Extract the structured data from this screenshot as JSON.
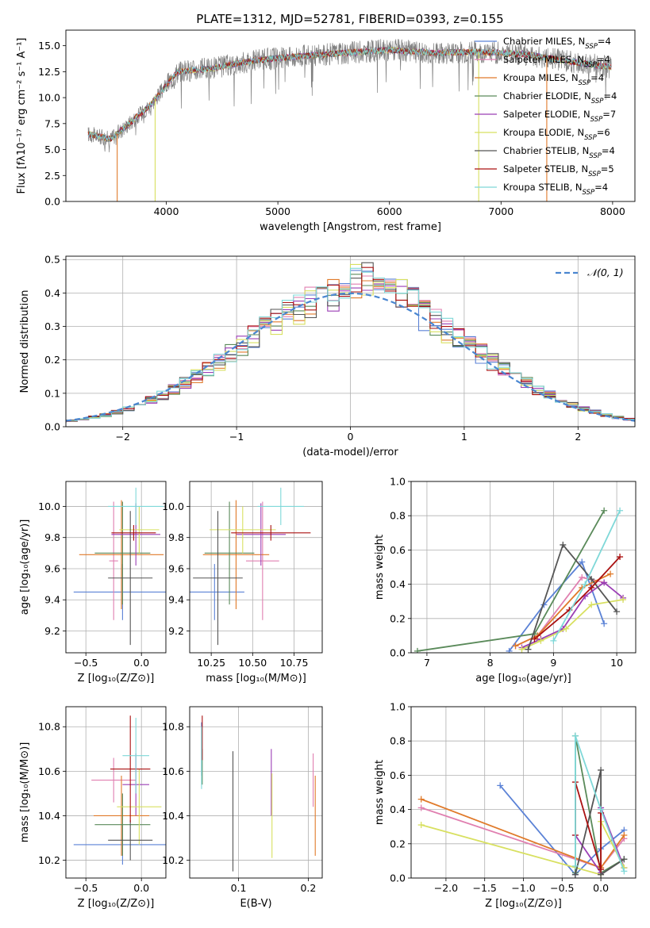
{
  "title": "PLATE=1312, MJD=52781, FIBERID=0393, z=0.155",
  "models": [
    {
      "name": "Chabrier MILES, N",
      "sub": "SSP",
      "tail": "=4",
      "color": "#5b82d6"
    },
    {
      "name": "Salpeter MILES, N",
      "sub": "SSP",
      "tail": "=4",
      "color": "#e07fb0"
    },
    {
      "name": "Kroupa MILES, N",
      "sub": "SSP",
      "tail": "=4",
      "color": "#e07a2a"
    },
    {
      "name": "Chabrier ELODIE, N",
      "sub": "SSP",
      "tail": "=4",
      "color": "#5a8a5a"
    },
    {
      "name": "Salpeter ELODIE, N",
      "sub": "SSP",
      "tail": "=7",
      "color": "#9b3fb5"
    },
    {
      "name": "Kroupa ELODIE, N",
      "sub": "SSP",
      "tail": "=6",
      "color": "#d8e060"
    },
    {
      "name": "Chabrier STELIB, N",
      "sub": "SSP",
      "tail": "=4",
      "color": "#555555"
    },
    {
      "name": "Salpeter STELIB, N",
      "sub": "SSP",
      "tail": "=5",
      "color": "#aa1111"
    },
    {
      "name": "Kroupa STELIB, N",
      "sub": "SSP",
      "tail": "=4",
      "color": "#7fd8d8"
    }
  ],
  "chart_data": [
    {
      "id": "spectrum",
      "type": "line",
      "xlabel": "wavelength [Angstrom, rest frame]",
      "ylabel": "Flux [fλ10⁻¹⁷ erg cm⁻² s⁻¹ A⁻¹]",
      "xlim": [
        3100,
        8200
      ],
      "ylim": [
        0,
        16.5
      ],
      "xticks": [
        4000,
        5000,
        6000,
        7000,
        8000
      ],
      "yticks": [
        0.0,
        2.5,
        5.0,
        7.5,
        10.0,
        12.5,
        15.0
      ],
      "continuum_x": [
        3300,
        3500,
        3700,
        3850,
        3950,
        4100,
        4400,
        4800,
        5200,
        5600,
        6000,
        6400,
        6800,
        7200,
        7600,
        8000
      ],
      "continuum_y": [
        6.5,
        6.0,
        7.8,
        9.2,
        10.5,
        12.5,
        12.8,
        13.6,
        14.0,
        14.3,
        14.6,
        14.3,
        14.4,
        14.2,
        13.5,
        12.9
      ]
    },
    {
      "id": "residuals",
      "type": "histogram",
      "xlabel": "(data-model)/error",
      "ylabel": "Normed distribution",
      "xlim": [
        -2.5,
        2.5
      ],
      "ylim": [
        0,
        0.51
      ],
      "xticks": [
        -2,
        -1,
        0,
        1,
        2
      ],
      "yticks": [
        0.0,
        0.1,
        0.2,
        0.3,
        0.4,
        0.5
      ],
      "legend": "𝒩(0, 1)",
      "bin_width": 0.1
    },
    {
      "id": "age_vs_Z",
      "type": "errorbar",
      "xlabel": "Z [log₁₀(Z/Z⊙)]",
      "ylabel": "age  [log₁₀(age/yr)]",
      "xlim": [
        -0.68,
        0.22
      ],
      "ylim": [
        9.06,
        10.16
      ],
      "xticks": [
        -0.5,
        0.0
      ],
      "yticks": [
        9.2,
        9.4,
        9.6,
        9.8,
        10.0
      ],
      "points": [
        {
          "x": -0.17,
          "xerr": 0.44,
          "y": 9.45,
          "yerr": 0.18
        },
        {
          "x": -0.25,
          "xerr": 0.04,
          "y": 9.65,
          "yerr": 0.38
        },
        {
          "x": -0.18,
          "xerr": 0.38,
          "y": 9.69,
          "yerr": 0.35
        },
        {
          "x": -0.17,
          "xerr": 0.25,
          "y": 9.7,
          "yerr": 0.33
        },
        {
          "x": -0.05,
          "xerr": 0.22,
          "y": 9.82,
          "yerr": 0.2
        },
        {
          "x": -0.02,
          "xerr": 0.18,
          "y": 9.85,
          "yerr": 0.15
        },
        {
          "x": -0.1,
          "xerr": 0.2,
          "y": 9.54,
          "yerr": 0.43
        },
        {
          "x": -0.07,
          "xerr": 0.2,
          "y": 9.83,
          "yerr": 0.05
        },
        {
          "x": -0.05,
          "xerr": 0.25,
          "y": 10.0,
          "yerr": 0.12
        }
      ]
    },
    {
      "id": "age_vs_mass",
      "type": "errorbar",
      "xlabel": "mass [log₁₀(M/M⊙)]",
      "ylabel": "",
      "xlim": [
        10.12,
        10.92
      ],
      "ylim": [
        9.06,
        10.16
      ],
      "xticks": [
        10.25,
        10.5,
        10.75
      ],
      "yticks": [
        9.2,
        9.4,
        9.6,
        9.8,
        10.0
      ],
      "points": [
        {
          "x": 10.27,
          "xerr": 0.18,
          "y": 9.45,
          "yerr": 0.18
        },
        {
          "x": 10.56,
          "xerr": 0.1,
          "y": 9.65,
          "yerr": 0.38
        },
        {
          "x": 10.4,
          "xerr": 0.2,
          "y": 9.69,
          "yerr": 0.35
        },
        {
          "x": 10.36,
          "xerr": 0.15,
          "y": 9.7,
          "yerr": 0.33
        },
        {
          "x": 10.55,
          "xerr": 0.15,
          "y": 9.82,
          "yerr": 0.2
        },
        {
          "x": 10.44,
          "xerr": 0.2,
          "y": 9.85,
          "yerr": 0.15
        },
        {
          "x": 10.29,
          "xerr": 0.15,
          "y": 9.54,
          "yerr": 0.43
        },
        {
          "x": 10.61,
          "xerr": 0.24,
          "y": 9.83,
          "yerr": 0.05
        },
        {
          "x": 10.67,
          "xerr": 0.14,
          "y": 10.0,
          "yerr": 0.12
        }
      ]
    },
    {
      "id": "mass_weight_vs_age",
      "type": "line",
      "xlabel": "age  [log₁₀(age/yr)]",
      "ylabel": "mass weight",
      "xlim": [
        6.75,
        10.3
      ],
      "ylim": [
        0,
        1.0
      ],
      "xticks": [
        7,
        8,
        9,
        10
      ],
      "yticks": [
        0.0,
        0.2,
        0.4,
        0.6,
        0.8,
        1.0
      ],
      "series": [
        {
          "x": [
            8.3,
            8.85,
            9.45,
            9.8
          ],
          "y": [
            0.01,
            0.28,
            0.53,
            0.17
          ]
        },
        {
          "x": [
            8.4,
            8.75,
            9.45,
            9.8
          ],
          "y": [
            0.04,
            0.1,
            0.44,
            0.41
          ]
        },
        {
          "x": [
            8.4,
            8.75,
            9.45,
            9.9
          ],
          "y": [
            0.04,
            0.1,
            0.38,
            0.46
          ]
        },
        {
          "x": [
            6.85,
            8.7,
            9.8
          ],
          "y": [
            0.01,
            0.11,
            0.83
          ]
        },
        {
          "x": [
            8.5,
            8.8,
            9.15,
            9.5,
            9.8,
            10.1
          ],
          "y": [
            0.03,
            0.08,
            0.14,
            0.33,
            0.41,
            0.32
          ]
        },
        {
          "x": [
            8.5,
            8.8,
            9.2,
            9.6,
            10.1
          ],
          "y": [
            0.02,
            0.07,
            0.14,
            0.28,
            0.31
          ]
        },
        {
          "x": [
            8.6,
            9.15,
            9.6,
            10.0
          ],
          "y": [
            0.02,
            0.63,
            0.43,
            0.24
          ]
        },
        {
          "x": [
            8.7,
            9.25,
            9.6,
            10.05
          ],
          "y": [
            0.08,
            0.25,
            0.38,
            0.56
          ]
        },
        {
          "x": [
            9.0,
            9.5,
            10.05
          ],
          "y": [
            0.07,
            0.4,
            0.83
          ]
        }
      ]
    },
    {
      "id": "mass_vs_Z",
      "type": "errorbar",
      "xlabel": "Z [log₁₀(Z/Z⊙)]",
      "ylabel": "mass [log₁₀(M/M⊙)]",
      "xlim": [
        -0.68,
        0.22
      ],
      "ylim": [
        10.12,
        10.89
      ],
      "xticks": [
        -0.5,
        0.0
      ],
      "yticks": [
        10.2,
        10.4,
        10.6,
        10.8
      ],
      "points": [
        {
          "x": -0.17,
          "xerr": 0.44,
          "y": 10.27,
          "yerr": 0.09
        },
        {
          "x": -0.25,
          "xerr": 0.2,
          "y": 10.56,
          "yerr": 0.1
        },
        {
          "x": -0.18,
          "xerr": 0.25,
          "y": 10.4,
          "yerr": 0.18
        },
        {
          "x": -0.17,
          "xerr": 0.25,
          "y": 10.36,
          "yerr": 0.14
        },
        {
          "x": -0.05,
          "xerr": 0.12,
          "y": 10.54,
          "yerr": 0.14
        },
        {
          "x": -0.02,
          "xerr": 0.2,
          "y": 10.44,
          "yerr": 0.17
        },
        {
          "x": -0.1,
          "xerr": 0.2,
          "y": 10.29,
          "yerr": 0.09
        },
        {
          "x": -0.1,
          "xerr": 0.18,
          "y": 10.61,
          "yerr": 0.24
        },
        {
          "x": -0.05,
          "xerr": 0.12,
          "y": 10.67,
          "yerr": 0.17
        }
      ]
    },
    {
      "id": "mass_vs_ebv",
      "type": "errorbar",
      "xlabel": "E(B-V)",
      "ylabel": "",
      "xlim": [
        0.03,
        0.22
      ],
      "ylim": [
        10.12,
        10.89
      ],
      "xticks": [
        0.1,
        0.2
      ],
      "yticks": [
        10.2,
        10.4,
        10.6,
        10.8
      ],
      "points": [
        {
          "x": 0.047,
          "xerr": 0,
          "y": 10.7,
          "yerr": 0.12
        },
        {
          "x": 0.207,
          "xerr": 0,
          "y": 10.56,
          "yerr": 0.12
        },
        {
          "x": 0.21,
          "xerr": 0,
          "y": 10.4,
          "yerr": 0.18
        },
        {
          "x": 0.048,
          "xerr": 0,
          "y": 10.62,
          "yerr": 0.08
        },
        {
          "x": 0.147,
          "xerr": 0,
          "y": 10.55,
          "yerr": 0.15
        },
        {
          "x": 0.148,
          "xerr": 0,
          "y": 10.4,
          "yerr": 0.19
        },
        {
          "x": 0.092,
          "xerr": 0,
          "y": 10.42,
          "yerr": 0.27
        },
        {
          "x": 0.048,
          "xerr": 0,
          "y": 10.75,
          "yerr": 0.1
        },
        {
          "x": 0.047,
          "xerr": 0,
          "y": 10.66,
          "yerr": 0.14
        }
      ]
    },
    {
      "id": "mass_weight_vs_Z",
      "type": "line",
      "xlabel": "Z [log₁₀(Z/Z⊙)]",
      "ylabel": "mass weight",
      "xlim": [
        -2.45,
        0.45
      ],
      "ylim": [
        0,
        1.0
      ],
      "xticks": [
        -2.0,
        -1.5,
        -1.0,
        -0.5,
        0.0
      ],
      "yticks": [
        0.0,
        0.2,
        0.4,
        0.6,
        0.8,
        1.0
      ],
      "series": [
        {
          "x": [
            -1.3,
            -0.33,
            0.0,
            0.3
          ],
          "y": [
            0.54,
            0.02,
            0.17,
            0.28
          ]
        },
        {
          "x": [
            -2.32,
            0.0,
            0.3
          ],
          "y": [
            0.41,
            0.06,
            0.23
          ]
        },
        {
          "x": [
            -2.32,
            0.0,
            0.3
          ],
          "y": [
            0.46,
            0.06,
            0.25
          ]
        },
        {
          "x": [
            -0.33,
            -0.33,
            0.0,
            0.3
          ],
          "y": [
            0.03,
            0.83,
            0.03,
            0.11
          ]
        },
        {
          "x": [
            -0.33,
            0.0,
            0.0,
            0.3
          ],
          "y": [
            0.25,
            0.03,
            0.41,
            0.06
          ]
        },
        {
          "x": [
            -2.32,
            0.0,
            0.0,
            0.3
          ],
          "y": [
            0.31,
            0.02,
            0.33,
            0.06
          ]
        },
        {
          "x": [
            -0.33,
            0.0,
            0.0,
            0.3
          ],
          "y": [
            0.02,
            0.63,
            0.02,
            0.11
          ]
        },
        {
          "x": [
            -0.33,
            -0.33,
            0.0,
            0.0
          ],
          "y": [
            0.25,
            0.56,
            0.05,
            0.38
          ]
        },
        {
          "x": [
            -0.33,
            -0.33,
            0.0,
            0.3
          ],
          "y": [
            0.07,
            0.83,
            0.4,
            0.04
          ]
        }
      ]
    }
  ]
}
